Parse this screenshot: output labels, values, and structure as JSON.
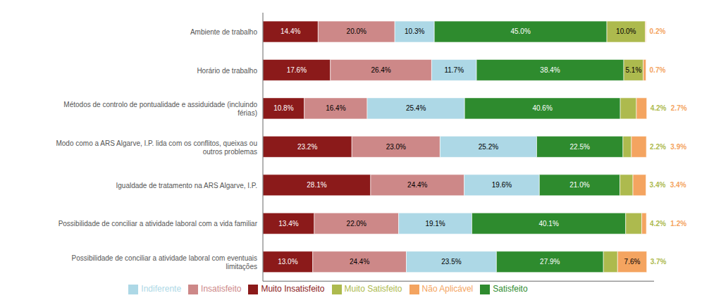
{
  "chart_data": {
    "type": "bar",
    "orientation": "horizontal",
    "stacked": true,
    "categories": [
      "Ambiente de trabalho",
      "Horário de trabalho",
      "Métodos de controlo de pontualidade e assiduidade (incluindo\nférias)",
      "Modo como a ARS Algarve, I.P. lida com os conflitos, queixas ou\noutros problemas",
      "Igualdade de tratamento na ARS Algarve, I.P.",
      "Possibilidade de conciliar a atividade laboral com a vida familiar",
      "Possibilidade de conciliar a atividade laboral com eventuais\nlimitações"
    ],
    "series": [
      {
        "name": "Muito Insatisfeito",
        "color": "#8B1A1A",
        "values": [
          14.4,
          17.6,
          10.8,
          23.2,
          28.1,
          13.4,
          13.0
        ],
        "value_labels": [
          "14.4%",
          "17.6%",
          "10.8%",
          "23.2%",
          "28.1%",
          "13.4%",
          "13.0%"
        ]
      },
      {
        "name": "Insatisfeito",
        "color": "#CD8888",
        "values": [
          20.0,
          26.4,
          16.4,
          23.0,
          24.4,
          22.0,
          24.4
        ],
        "value_labels": [
          "20.0%",
          "26.4%",
          "16.4%",
          "23.0%",
          "24.4%",
          "22.0%",
          "24.4%"
        ]
      },
      {
        "name": "Indiferente",
        "color": "#ADD8E6",
        "values": [
          10.3,
          11.7,
          25.4,
          25.2,
          19.6,
          19.1,
          23.5
        ],
        "value_labels": [
          "10.3%",
          "11.7%",
          "25.4%",
          "25.2%",
          "19.6%",
          "19.1%",
          "23.5%"
        ]
      },
      {
        "name": "Satisfeito",
        "color": "#2E8B2E",
        "values": [
          45.0,
          38.4,
          40.6,
          22.5,
          21.0,
          40.1,
          27.9
        ],
        "value_labels": [
          "45.0%",
          "38.4%",
          "40.6%",
          "22.5%",
          "21.0%",
          "40.1%",
          "27.9%"
        ]
      },
      {
        "name": "Muito Satisfeito",
        "color": "#ADBA4E",
        "values": [
          10.0,
          5.1,
          4.2,
          2.2,
          3.4,
          4.2,
          3.7
        ],
        "value_labels": [
          "10.0%",
          "5.1%",
          "4.2%",
          "2.2%",
          "3.4%",
          "4.2%",
          "3.7%"
        ]
      },
      {
        "name": "Não Aplicável",
        "color": "#F4A460",
        "values": [
          0.2,
          0.7,
          2.7,
          3.9,
          3.4,
          1.2,
          7.6
        ],
        "value_labels": [
          "0.2%",
          "0.7%",
          "2.7%",
          "3.9%",
          "3.4%",
          "1.2%",
          "7.6%"
        ]
      }
    ],
    "xlim": [
      0,
      102
    ],
    "xticks": [],
    "grid": false,
    "legend": "bottom",
    "data_labels": true,
    "tick_labels": "y"
  }
}
